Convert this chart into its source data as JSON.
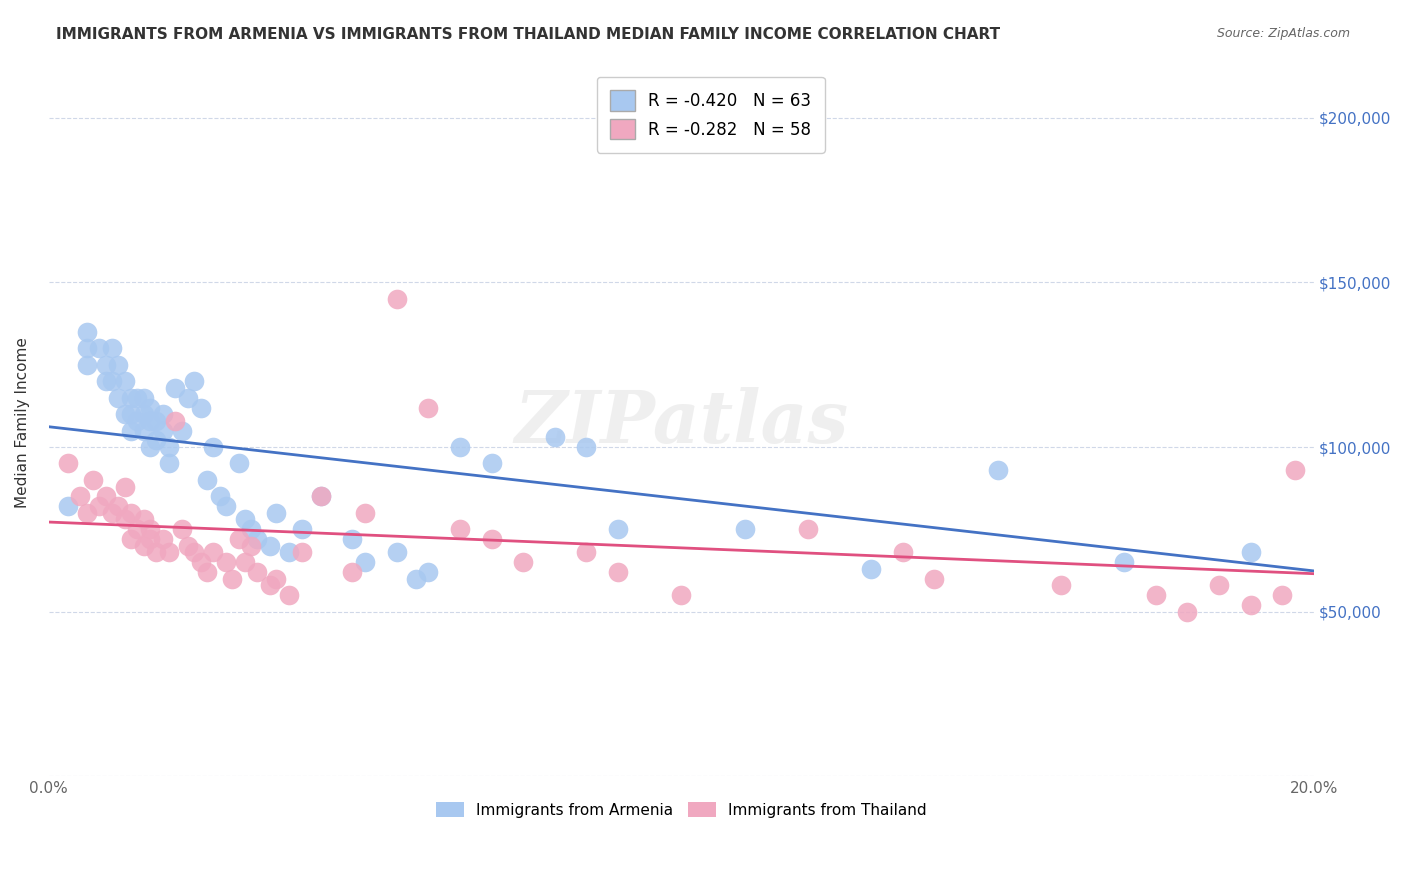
{
  "title": "IMMIGRANTS FROM ARMENIA VS IMMIGRANTS FROM THAILAND MEDIAN FAMILY INCOME CORRELATION CHART",
  "source": "Source: ZipAtlas.com",
  "ylabel": "Median Family Income",
  "x_min": 0.0,
  "x_max": 0.2,
  "y_min": 0,
  "y_max": 215000,
  "x_ticks": [
    0.0,
    0.05,
    0.1,
    0.15,
    0.2
  ],
  "y_ticks": [
    0,
    50000,
    100000,
    150000,
    200000
  ],
  "y_tick_labels": [
    "",
    "$50,000",
    "$100,000",
    "$150,000",
    "$200,000"
  ],
  "legend1_label": "R = -0.420   N = 63",
  "legend2_label": "R = -0.282   N = 58",
  "series1_label": "Immigrants from Armenia",
  "series2_label": "Immigrants from Thailand",
  "blue_color": "#a8c8f0",
  "pink_color": "#f0a8c0",
  "blue_line_color": "#4472c4",
  "pink_line_color": "#e05080",
  "blue_r": -0.42,
  "pink_r": -0.282,
  "watermark": "ZIPatlas",
  "background_color": "#ffffff",
  "grid_color": "#d0d8e8",
  "armenia_x": [
    0.003,
    0.006,
    0.006,
    0.006,
    0.008,
    0.009,
    0.009,
    0.01,
    0.01,
    0.011,
    0.011,
    0.012,
    0.012,
    0.013,
    0.013,
    0.013,
    0.014,
    0.014,
    0.015,
    0.015,
    0.015,
    0.016,
    0.016,
    0.016,
    0.017,
    0.017,
    0.018,
    0.018,
    0.019,
    0.019,
    0.02,
    0.021,
    0.022,
    0.023,
    0.024,
    0.025,
    0.026,
    0.027,
    0.028,
    0.03,
    0.031,
    0.032,
    0.033,
    0.035,
    0.036,
    0.038,
    0.04,
    0.043,
    0.048,
    0.05,
    0.055,
    0.058,
    0.06,
    0.065,
    0.07,
    0.08,
    0.085,
    0.09,
    0.11,
    0.13,
    0.15,
    0.17,
    0.19
  ],
  "armenia_y": [
    82000,
    130000,
    125000,
    135000,
    130000,
    125000,
    120000,
    130000,
    120000,
    125000,
    115000,
    120000,
    110000,
    115000,
    110000,
    105000,
    115000,
    108000,
    115000,
    110000,
    105000,
    112000,
    108000,
    100000,
    108000,
    102000,
    110000,
    105000,
    100000,
    95000,
    118000,
    105000,
    115000,
    120000,
    112000,
    90000,
    100000,
    85000,
    82000,
    95000,
    78000,
    75000,
    72000,
    70000,
    80000,
    68000,
    75000,
    85000,
    72000,
    65000,
    68000,
    60000,
    62000,
    100000,
    95000,
    103000,
    100000,
    75000,
    75000,
    63000,
    93000,
    65000,
    68000
  ],
  "thailand_x": [
    0.003,
    0.005,
    0.006,
    0.007,
    0.008,
    0.009,
    0.01,
    0.011,
    0.012,
    0.012,
    0.013,
    0.013,
    0.014,
    0.015,
    0.015,
    0.016,
    0.016,
    0.017,
    0.018,
    0.019,
    0.02,
    0.021,
    0.022,
    0.023,
    0.024,
    0.025,
    0.026,
    0.028,
    0.029,
    0.03,
    0.031,
    0.032,
    0.033,
    0.035,
    0.036,
    0.038,
    0.04,
    0.043,
    0.048,
    0.05,
    0.055,
    0.06,
    0.065,
    0.07,
    0.075,
    0.085,
    0.09,
    0.1,
    0.12,
    0.135,
    0.14,
    0.16,
    0.175,
    0.18,
    0.185,
    0.19,
    0.195,
    0.197
  ],
  "thailand_y": [
    95000,
    85000,
    80000,
    90000,
    82000,
    85000,
    80000,
    82000,
    78000,
    88000,
    72000,
    80000,
    75000,
    70000,
    78000,
    75000,
    72000,
    68000,
    72000,
    68000,
    108000,
    75000,
    70000,
    68000,
    65000,
    62000,
    68000,
    65000,
    60000,
    72000,
    65000,
    70000,
    62000,
    58000,
    60000,
    55000,
    68000,
    85000,
    62000,
    80000,
    145000,
    112000,
    75000,
    72000,
    65000,
    68000,
    62000,
    55000,
    75000,
    68000,
    60000,
    58000,
    55000,
    50000,
    58000,
    52000,
    55000,
    93000
  ]
}
